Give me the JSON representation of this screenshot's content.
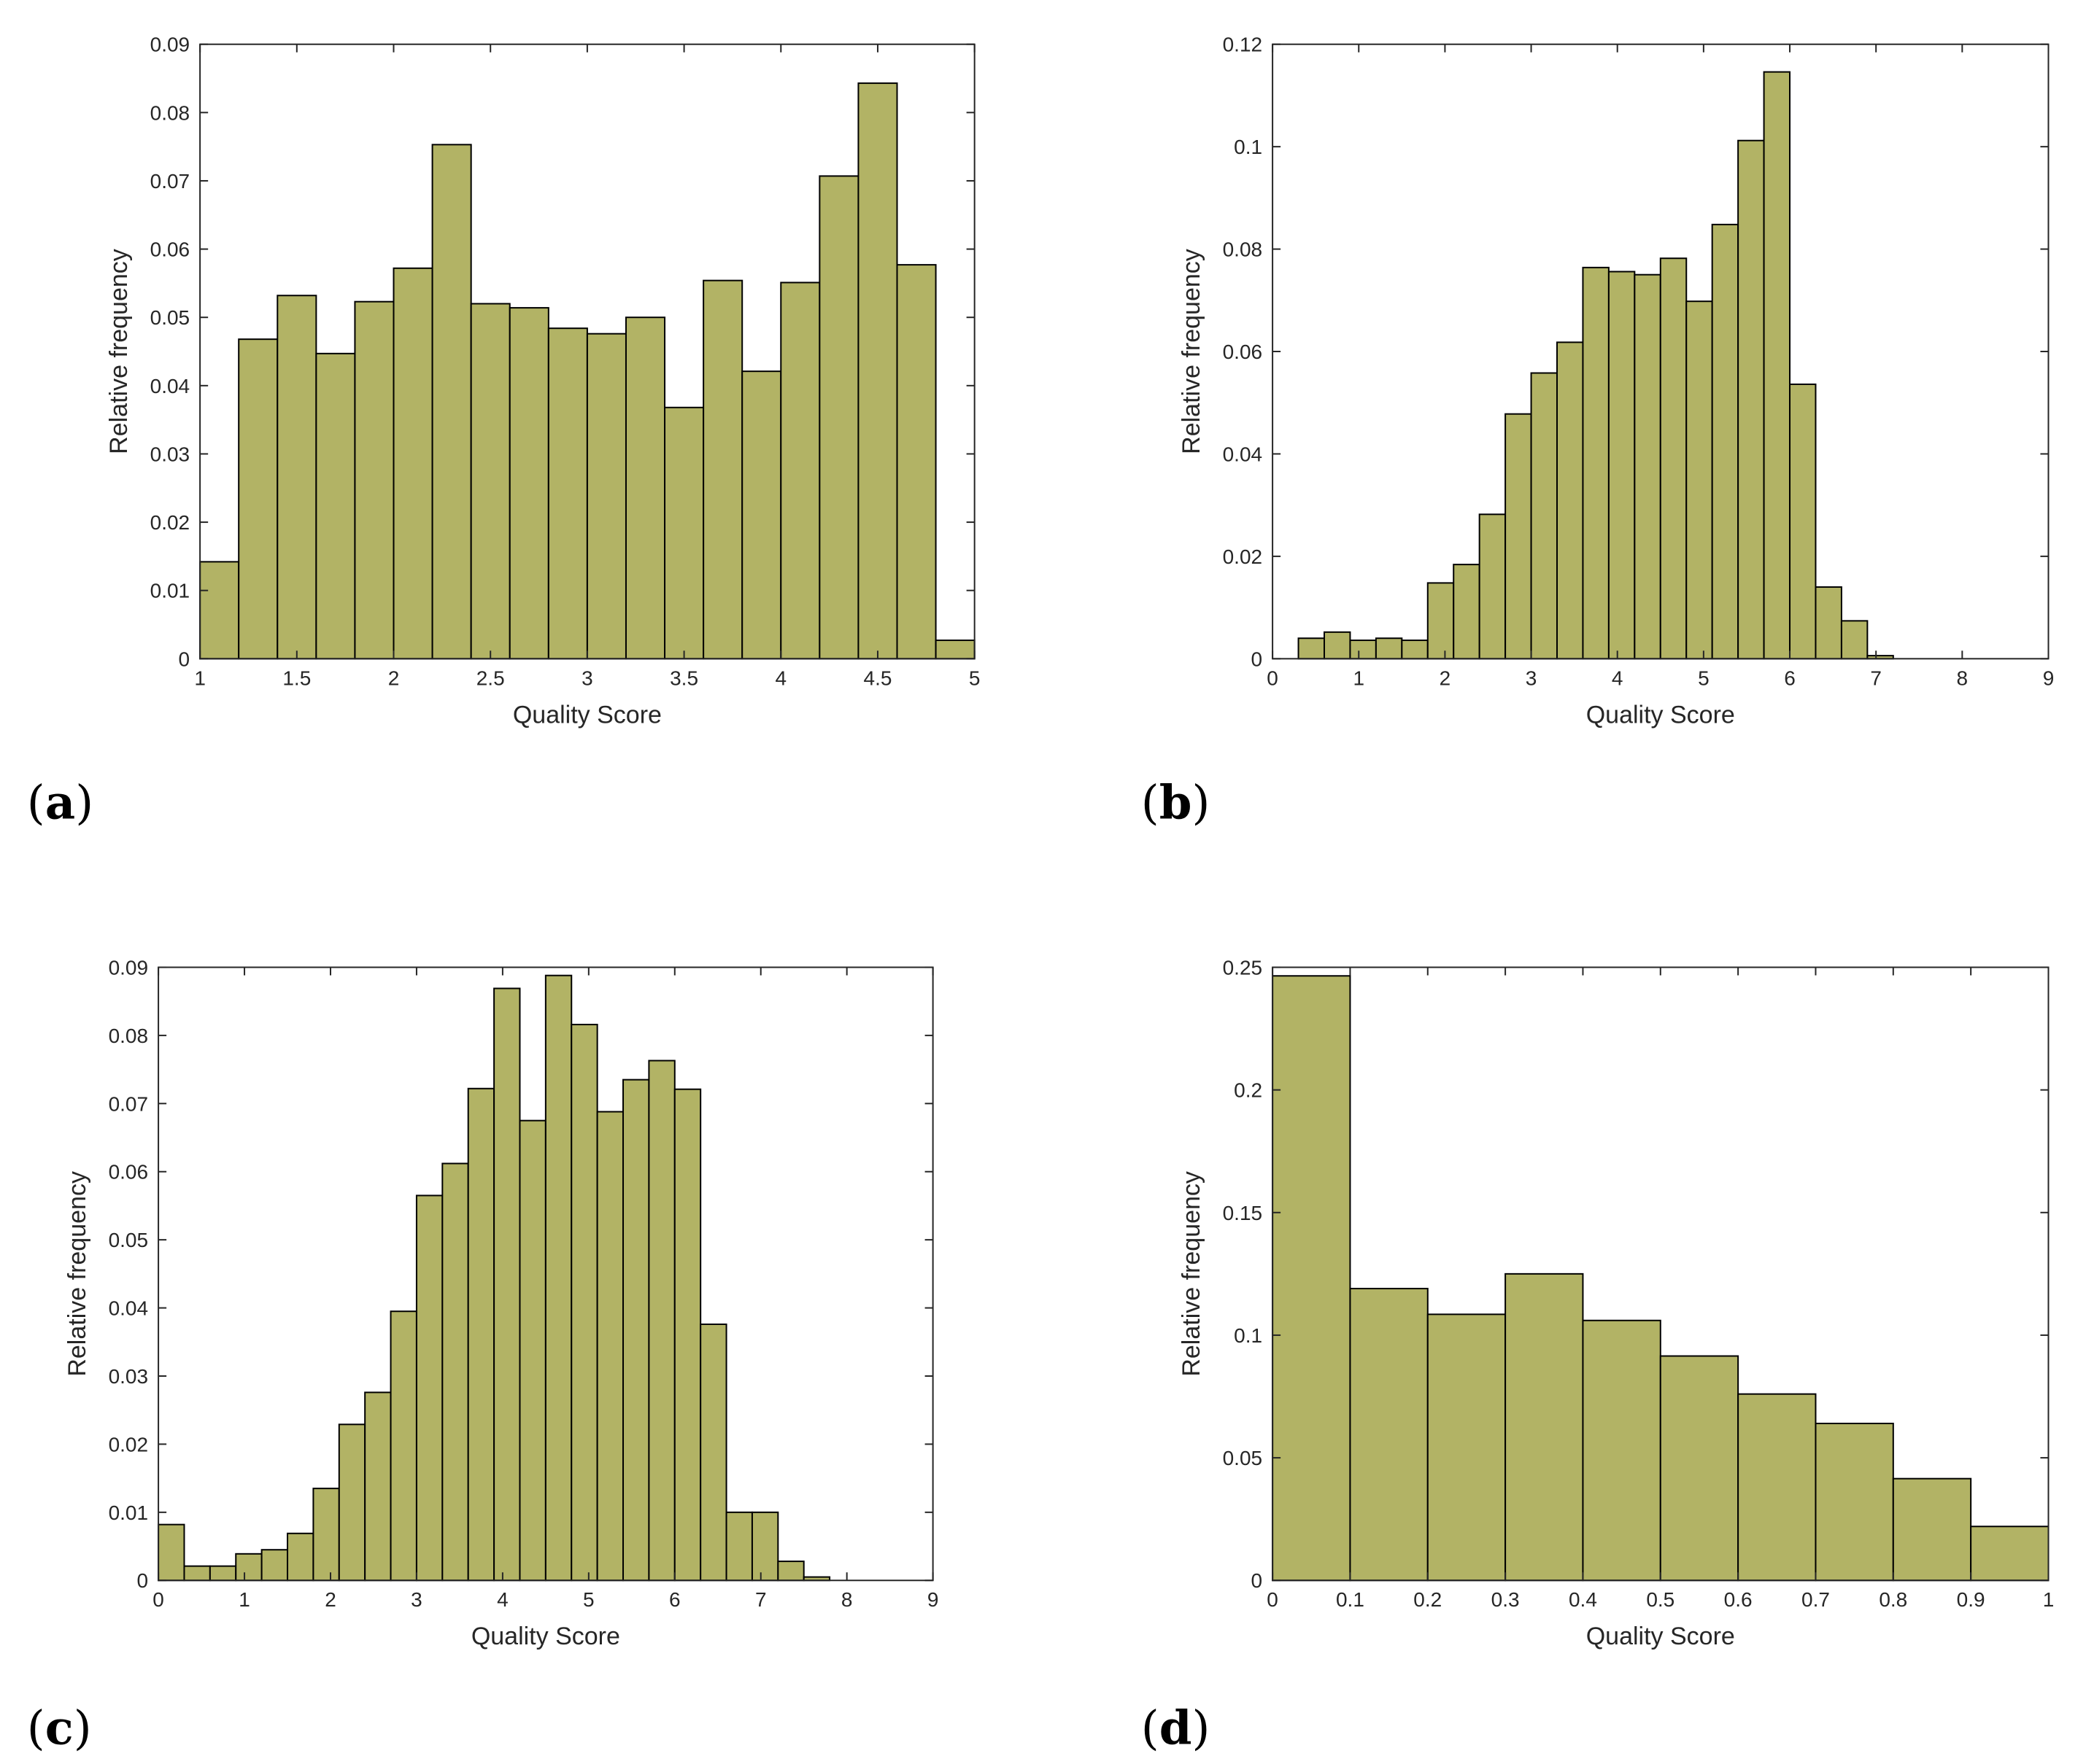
{
  "bar_color": "#b2b365",
  "chart_data": [
    {
      "id": "a",
      "panel_label": "a",
      "type": "bar",
      "xlabel": "Quality Score",
      "ylabel": "Relative frequency",
      "xlim": [
        1,
        5
      ],
      "ylim": [
        0,
        0.09
      ],
      "xticks": [
        1,
        1.5,
        2,
        2.5,
        3,
        3.5,
        4,
        4.5,
        5
      ],
      "yticks": [
        0,
        0.01,
        0.02,
        0.03,
        0.04,
        0.05,
        0.06,
        0.07,
        0.08,
        0.09
      ],
      "bin_edges": [
        1,
        1.2,
        1.4,
        1.6,
        1.8,
        2.0,
        2.2,
        2.4,
        2.6,
        2.8,
        3.0,
        3.2,
        3.4,
        3.6,
        3.8,
        4.0,
        4.2,
        4.4,
        4.6,
        4.8,
        5.0
      ],
      "values": [
        0.0142,
        0.0468,
        0.0532,
        0.0447,
        0.0523,
        0.0572,
        0.0753,
        0.052,
        0.0514,
        0.0484,
        0.0476,
        0.05,
        0.0368,
        0.0554,
        0.0421,
        0.0551,
        0.0707,
        0.0843,
        0.0577,
        0.0027
      ]
    },
    {
      "id": "b",
      "panel_label": "b",
      "type": "bar",
      "xlabel": "Quality Score",
      "ylabel": "Relative frequency",
      "xlim": [
        0,
        9
      ],
      "ylim": [
        0,
        0.12
      ],
      "xticks": [
        0,
        1,
        2,
        3,
        4,
        5,
        6,
        7,
        8,
        9
      ],
      "yticks": [
        0,
        0.02,
        0.04,
        0.06,
        0.08,
        0.1,
        0.12
      ],
      "bin_edges": [
        0.3,
        0.6,
        0.9,
        1.2,
        1.5,
        1.8,
        2.1,
        2.4,
        2.7,
        3.0,
        3.3,
        3.6,
        3.9,
        4.2,
        4.5,
        4.8,
        5.1,
        5.4,
        5.7,
        6.0,
        6.3,
        6.6,
        6.9,
        7.2
      ],
      "values": [
        0.004,
        0.0052,
        0.0036,
        0.004,
        0.0036,
        0.0148,
        0.0184,
        0.0282,
        0.0478,
        0.0558,
        0.0618,
        0.0764,
        0.0756,
        0.075,
        0.0782,
        0.0698,
        0.0848,
        0.1012,
        0.1146,
        0.0536,
        0.014,
        0.0074,
        0.0006
      ]
    },
    {
      "id": "c",
      "panel_label": "c",
      "type": "bar",
      "xlabel": "Quality Score",
      "ylabel": "Relative frequency",
      "xlim": [
        0,
        9
      ],
      "ylim": [
        0,
        0.09
      ],
      "xticks": [
        0,
        1,
        2,
        3,
        4,
        5,
        6,
        7,
        8,
        9
      ],
      "yticks": [
        0,
        0.01,
        0.02,
        0.03,
        0.04,
        0.05,
        0.06,
        0.07,
        0.08,
        0.09
      ],
      "bin_edges": [
        0,
        0.3,
        0.6,
        0.9,
        1.2,
        1.5,
        1.8,
        2.1,
        2.4,
        2.7,
        3.0,
        3.3,
        3.6,
        3.9,
        4.2,
        4.5,
        4.8,
        5.1,
        5.4,
        5.7,
        6.0,
        6.3,
        6.6,
        6.9,
        7.2,
        7.5,
        7.8
      ],
      "values": [
        0.0082,
        0.0021,
        0.0021,
        0.0039,
        0.0045,
        0.0069,
        0.0135,
        0.0229,
        0.0276,
        0.0395,
        0.0565,
        0.0612,
        0.0722,
        0.0869,
        0.0675,
        0.0888,
        0.0816,
        0.0688,
        0.0735,
        0.0763,
        0.0721,
        0.0376,
        0.01,
        0.01,
        0.0028,
        0.0005
      ]
    },
    {
      "id": "d",
      "panel_label": "d",
      "type": "bar",
      "xlabel": "Quality Score",
      "ylabel": "Relative frequency",
      "xlim": [
        0,
        1
      ],
      "ylim": [
        0,
        0.25
      ],
      "xticks": [
        0,
        0.1,
        0.2,
        0.3,
        0.4,
        0.5,
        0.6,
        0.7,
        0.8,
        0.9,
        1
      ],
      "yticks": [
        0,
        0.05,
        0.1,
        0.15,
        0.2,
        0.25
      ],
      "bin_edges": [
        0,
        0.1,
        0.2,
        0.3,
        0.4,
        0.5,
        0.6,
        0.7,
        0.8,
        0.9,
        1.0
      ],
      "values": [
        0.2465,
        0.119,
        0.1085,
        0.125,
        0.106,
        0.0915,
        0.076,
        0.064,
        0.0415,
        0.022
      ]
    }
  ]
}
